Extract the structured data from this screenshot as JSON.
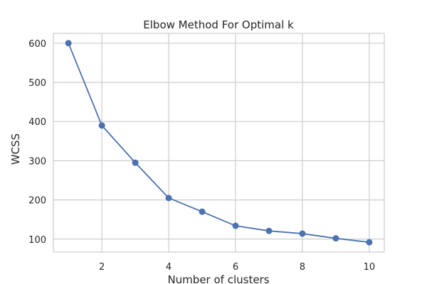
{
  "chart_data": {
    "type": "line",
    "title": "Elbow Method For Optimal k",
    "xlabel": "Number of clusters",
    "ylabel": "WCSS",
    "x": [
      1,
      2,
      3,
      4,
      5,
      6,
      7,
      8,
      9,
      10
    ],
    "series": [
      {
        "values": [
          600,
          390,
          295,
          205,
          170,
          134,
          121,
          114,
          102,
          92
        ],
        "marker": "circle"
      }
    ],
    "xlim": [
      0.55,
      10.45
    ],
    "ylim": [
      67,
      625
    ],
    "xticks": [
      2,
      4,
      6,
      8,
      10
    ],
    "yticks": [
      100,
      200,
      300,
      400,
      500,
      600
    ],
    "grid": true,
    "colors": {
      "line": "#4c72b0",
      "grid": "#cccccc",
      "frame": "#cccccc",
      "text": "#262626"
    }
  }
}
